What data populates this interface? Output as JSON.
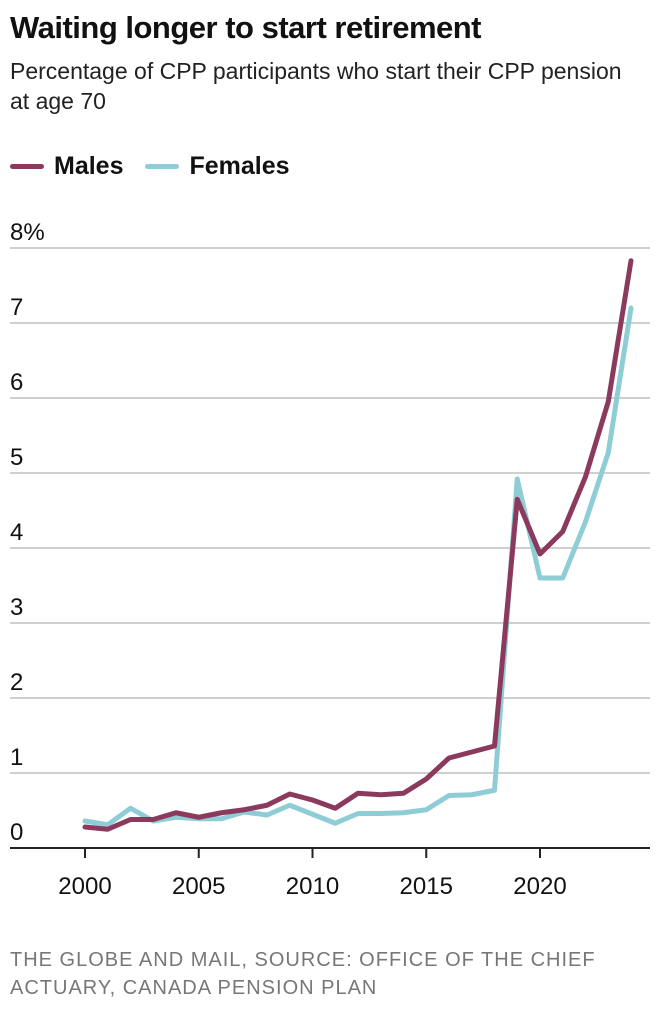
{
  "chart_data": {
    "type": "line",
    "title": "Waiting longer to start retirement",
    "subtitle": "Percentage of CPP participants who start their CPP pension at age 70",
    "x": [
      2000,
      2001,
      2002,
      2003,
      2004,
      2005,
      2006,
      2007,
      2008,
      2009,
      2010,
      2011,
      2012,
      2013,
      2014,
      2015,
      2016,
      2017,
      2018,
      2019,
      2020,
      2021,
      2022,
      2023,
      2024
    ],
    "series": [
      {
        "name": "Males",
        "color": "#8b3a5e",
        "values": [
          0.28,
          0.25,
          0.38,
          0.38,
          0.47,
          0.41,
          0.47,
          0.51,
          0.57,
          0.72,
          0.64,
          0.53,
          0.73,
          0.71,
          0.73,
          0.92,
          1.2,
          1.28,
          1.36,
          4.65,
          3.92,
          4.22,
          4.95,
          5.95,
          7.83
        ]
      },
      {
        "name": "Females",
        "color": "#8ecdd6",
        "values": [
          0.36,
          0.31,
          0.53,
          0.36,
          0.41,
          0.39,
          0.39,
          0.48,
          0.44,
          0.57,
          0.45,
          0.33,
          0.46,
          0.46,
          0.47,
          0.51,
          0.7,
          0.71,
          0.77,
          4.92,
          3.6,
          3.6,
          4.35,
          5.27,
          7.2
        ]
      }
    ],
    "ylim": [
      0,
      8
    ],
    "yticks": [
      "0",
      "1",
      "2",
      "3",
      "4",
      "5",
      "6",
      "7",
      "8%"
    ],
    "xticks": [
      "2000",
      "2005",
      "2010",
      "2015",
      "2020"
    ],
    "xlim": [
      2000,
      2024
    ],
    "grid": true,
    "legend": "top-left",
    "source": "THE GLOBE AND MAIL, SOURCE: OFFICE OF THE CHIEF ACTUARY, CANADA PENSION PLAN"
  }
}
